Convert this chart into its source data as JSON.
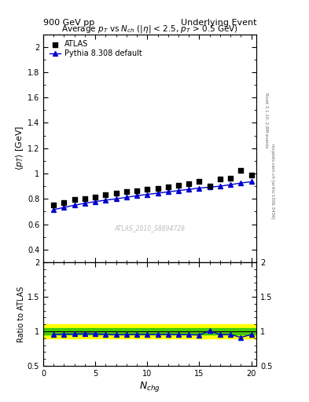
{
  "title_left": "900 GeV pp",
  "title_right": "Underlying Event",
  "plot_title": "Average $p_T$ vs $N_{ch}$ ($|\\eta|$ < 2.5, $p_T$ > 0.5 GeV)",
  "ylabel_main": "$\\langle p_T \\rangle$ [GeV]",
  "ylabel_ratio": "Ratio to ATLAS",
  "xlabel": "$N_{chg}$",
  "watermark": "ATLAS_2010_S8894728",
  "right_label_bottom": "mcplots.cern.ch [arXiv:1306.3436]",
  "right_label_top": "Rivet 3.1.10, 2.8M events",
  "atlas_x": [
    1,
    2,
    3,
    4,
    5,
    6,
    7,
    8,
    9,
    10,
    11,
    12,
    13,
    14,
    15,
    16,
    17,
    18,
    19,
    20
  ],
  "atlas_y": [
    0.75,
    0.77,
    0.795,
    0.8,
    0.815,
    0.83,
    0.845,
    0.855,
    0.865,
    0.875,
    0.885,
    0.895,
    0.91,
    0.92,
    0.935,
    0.9,
    0.955,
    0.96,
    1.025,
    0.985
  ],
  "pythia_x": [
    1,
    2,
    3,
    4,
    5,
    6,
    7,
    8,
    9,
    10,
    11,
    12,
    13,
    14,
    15,
    16,
    17,
    18,
    19,
    20
  ],
  "pythia_y": [
    0.715,
    0.732,
    0.75,
    0.765,
    0.778,
    0.79,
    0.8,
    0.812,
    0.825,
    0.835,
    0.845,
    0.855,
    0.865,
    0.875,
    0.885,
    0.892,
    0.9,
    0.912,
    0.925,
    0.935
  ],
  "ratio_pythia": [
    0.953,
    0.958,
    0.96,
    0.966,
    0.962,
    0.956,
    0.95,
    0.952,
    0.955,
    0.954,
    0.955,
    0.955,
    0.953,
    0.951,
    0.947,
    1.005,
    0.952,
    0.953,
    0.912,
    0.952
  ],
  "ylim_main": [
    0.3,
    2.1
  ],
  "ylim_ratio": [
    0.5,
    2.0
  ],
  "yticks_main": [
    0.4,
    0.6,
    0.8,
    1.0,
    1.2,
    1.4,
    1.6,
    1.8,
    2.0
  ],
  "yticks_ratio": [
    0.5,
    1.0,
    1.5,
    2.0
  ],
  "green_band_low": 0.95,
  "green_band_high": 1.05,
  "yellow_band_low": 0.9,
  "yellow_band_high": 1.1,
  "atlas_color": "#000000",
  "pythia_color": "#0000cc",
  "green_color": "#00bb00",
  "yellow_color": "#ffff00",
  "background_color": "#ffffff"
}
